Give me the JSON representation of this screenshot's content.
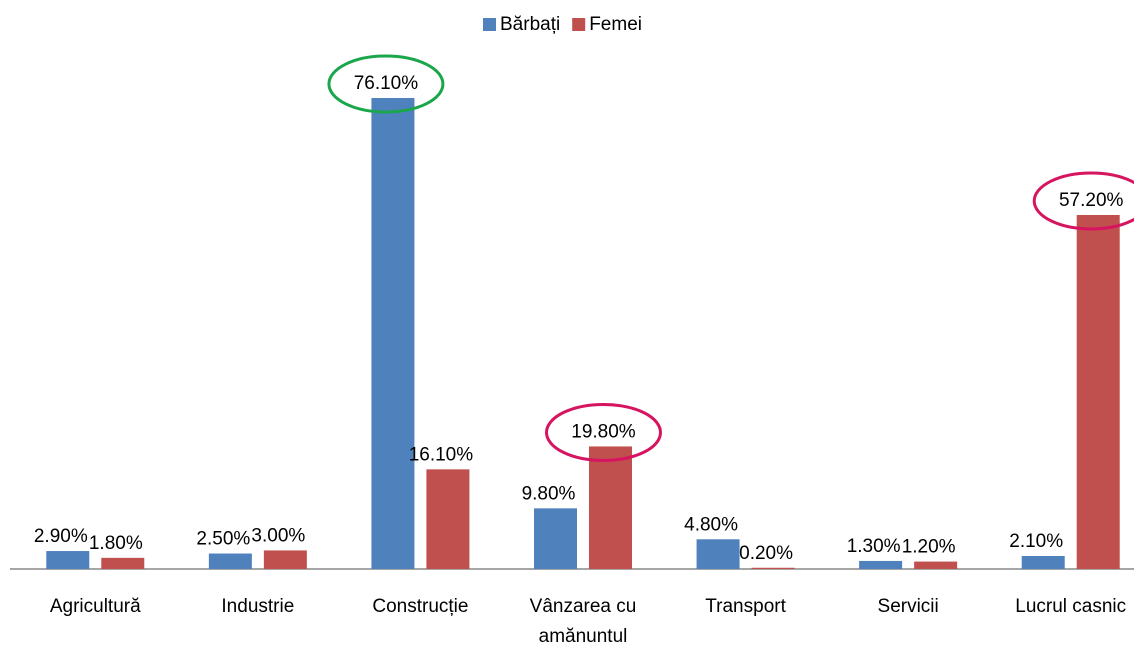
{
  "chart_data": {
    "type": "bar",
    "categories": [
      "Agricultură",
      "Industrie",
      "Construcție",
      "Vânzarea cu amănuntul",
      "Transport",
      "Servicii",
      "Lucrul casnic"
    ],
    "series": [
      {
        "name": "Bărbați",
        "color": "#4f81bd",
        "values": [
          2.9,
          2.5,
          76.1,
          9.8,
          4.8,
          1.3,
          2.1
        ],
        "value_labels": [
          "2.90%",
          "2.50%",
          "76.10%",
          "9.80%",
          "4.80%",
          "1.30%",
          "2.10%"
        ]
      },
      {
        "name": "Femei",
        "color": "#c0504d",
        "values": [
          1.8,
          3.0,
          16.1,
          19.8,
          0.2,
          1.2,
          57.2
        ],
        "value_labels": [
          "1.80%",
          "3.00%",
          "16.10%",
          "19.80%",
          "0.20%",
          "1.20%",
          "57.20%"
        ]
      }
    ],
    "legend": "top",
    "highlights": [
      {
        "series": 0,
        "index": 2,
        "color": "#1aa64a"
      },
      {
        "series": 1,
        "index": 3,
        "color": "#d6145f"
      },
      {
        "series": 1,
        "index": 6,
        "color": "#d6145f"
      }
    ]
  }
}
